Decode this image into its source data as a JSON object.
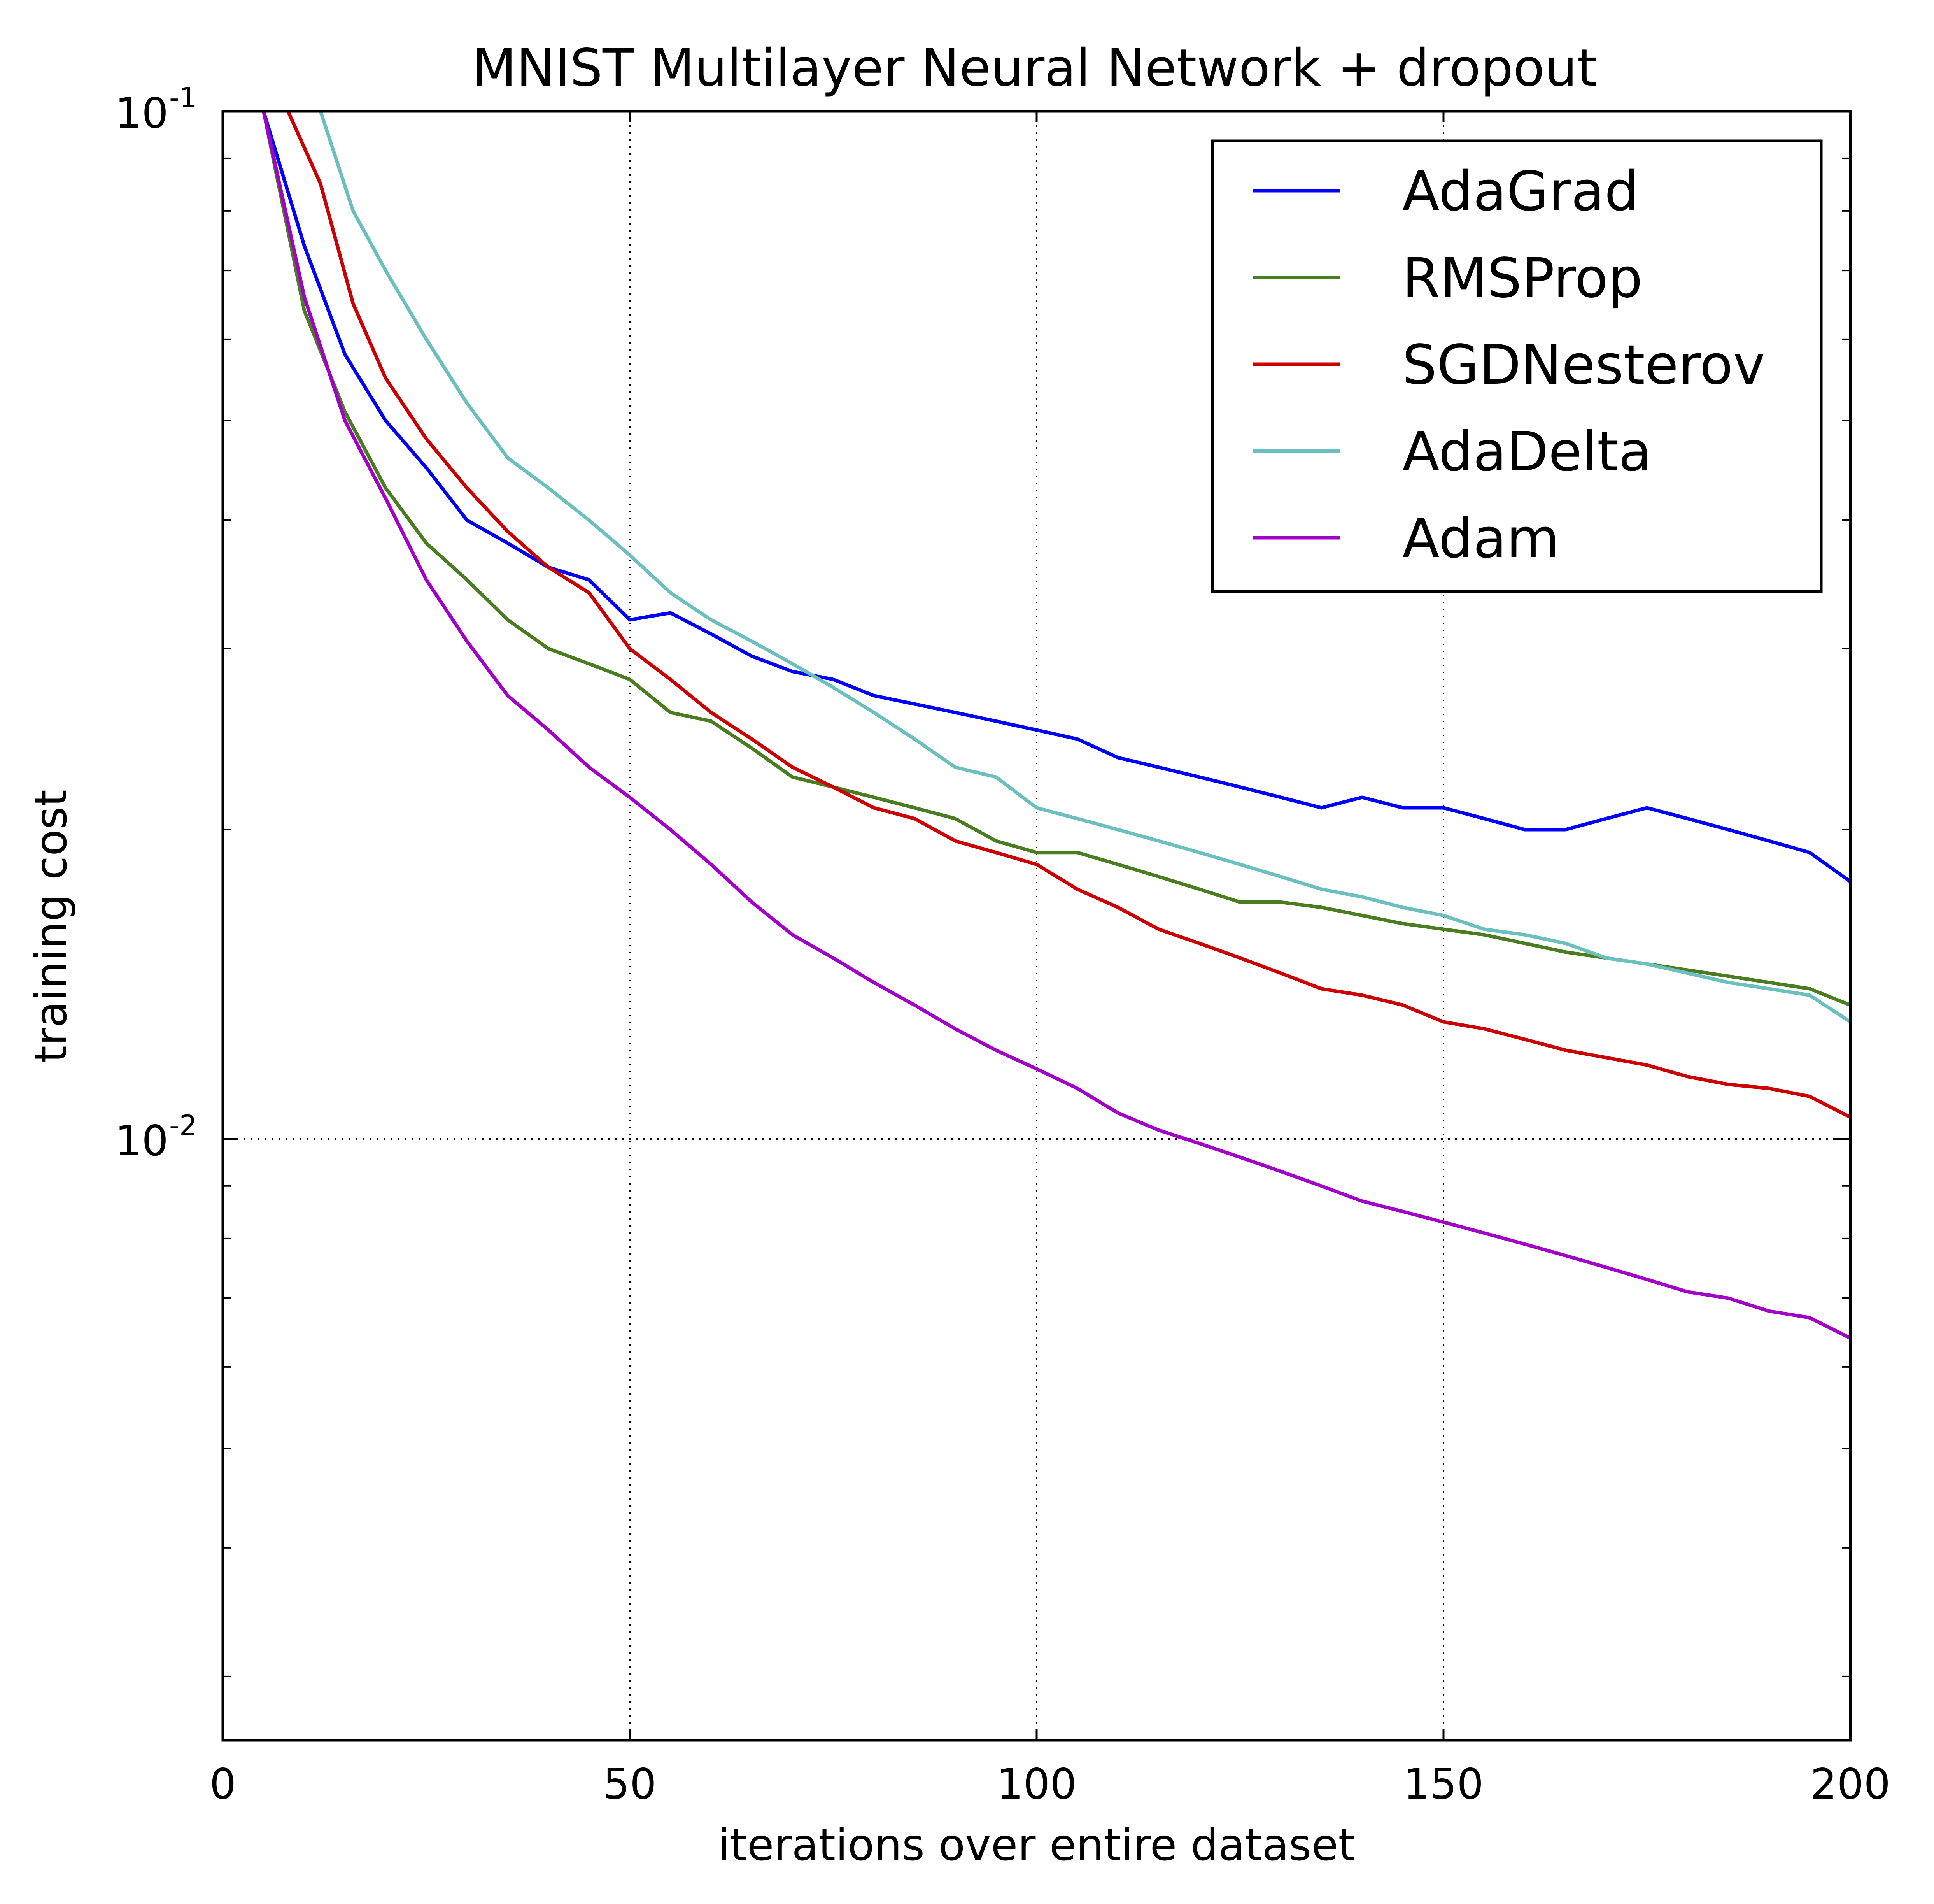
{
  "chart_data": {
    "type": "line",
    "title": "MNIST Multilayer Neural Network + dropout",
    "xlabel": "iterations over entire dataset",
    "ylabel": "training cost",
    "xlim": [
      0,
      200
    ],
    "ylim": [
      0.0026,
      0.1
    ],
    "yscale": "log",
    "grid": true,
    "legend_position": "top-right",
    "x_ticks": [
      "0",
      "50",
      "100",
      "150",
      "200"
    ],
    "y_ticks": [
      {
        "base": "10",
        "exp": "-1"
      },
      {
        "base": "10",
        "exp": "-2"
      }
    ],
    "series": [
      {
        "name": "AdaGrad",
        "color": "#0000ff",
        "x": [
          5,
          10,
          15,
          20,
          25,
          30,
          35,
          40,
          45,
          50,
          55,
          60,
          65,
          70,
          75,
          80,
          85,
          90,
          95,
          100,
          105,
          110,
          115,
          120,
          125,
          130,
          135,
          140,
          145,
          150,
          155,
          160,
          165,
          170,
          175,
          180,
          185,
          190,
          195,
          200
        ],
        "y": [
          0.1,
          0.074,
          0.058,
          0.05,
          0.045,
          0.04,
          0.038,
          0.036,
          0.035,
          0.032,
          0.0325,
          0.031,
          0.0295,
          0.0285,
          0.028,
          0.027,
          0.0265,
          0.026,
          0.0255,
          0.025,
          0.0245,
          0.0235,
          0.023,
          0.0225,
          0.022,
          0.0215,
          0.021,
          0.0215,
          0.021,
          0.021,
          0.0205,
          0.02,
          0.02,
          0.0205,
          0.021,
          0.0205,
          0.02,
          0.0195,
          0.019,
          0.0178
        ]
      },
      {
        "name": "RMSProp",
        "color": "#4a7c20",
        "x": [
          5,
          10,
          15,
          20,
          25,
          30,
          35,
          40,
          45,
          50,
          55,
          60,
          65,
          70,
          75,
          80,
          85,
          90,
          95,
          100,
          105,
          110,
          115,
          120,
          125,
          130,
          135,
          140,
          145,
          150,
          155,
          160,
          165,
          170,
          175,
          180,
          185,
          190,
          195,
          200
        ],
        "y": [
          0.1,
          0.064,
          0.051,
          0.043,
          0.038,
          0.035,
          0.032,
          0.03,
          0.029,
          0.028,
          0.026,
          0.0255,
          0.024,
          0.0225,
          0.022,
          0.0215,
          0.021,
          0.0205,
          0.0195,
          0.019,
          0.019,
          0.0185,
          0.018,
          0.0175,
          0.017,
          0.017,
          0.0168,
          0.0165,
          0.0162,
          0.016,
          0.0158,
          0.0155,
          0.0152,
          0.015,
          0.0148,
          0.0146,
          0.0144,
          0.0142,
          0.014,
          0.0135
        ]
      },
      {
        "name": "SGDNesterov",
        "color": "#cc0000",
        "x": [
          8,
          12,
          16,
          20,
          25,
          30,
          35,
          40,
          45,
          50,
          55,
          60,
          65,
          70,
          75,
          80,
          85,
          90,
          95,
          100,
          105,
          110,
          115,
          120,
          125,
          130,
          135,
          140,
          145,
          150,
          155,
          160,
          165,
          170,
          175,
          180,
          185,
          190,
          195,
          200
        ],
        "y": [
          0.1,
          0.085,
          0.065,
          0.055,
          0.048,
          0.043,
          0.039,
          0.036,
          0.034,
          0.03,
          0.028,
          0.026,
          0.0245,
          0.023,
          0.022,
          0.021,
          0.0205,
          0.0195,
          0.019,
          0.0185,
          0.0175,
          0.0168,
          0.016,
          0.0155,
          0.015,
          0.0145,
          0.014,
          0.0138,
          0.0135,
          0.013,
          0.0128,
          0.0125,
          0.0122,
          0.012,
          0.0118,
          0.0115,
          0.0113,
          0.0112,
          0.011,
          0.0105
        ]
      },
      {
        "name": "AdaDelta",
        "color": "#6bbfbf",
        "x": [
          12,
          16,
          20,
          25,
          30,
          35,
          40,
          45,
          50,
          55,
          60,
          65,
          70,
          75,
          80,
          85,
          90,
          95,
          100,
          105,
          110,
          115,
          120,
          125,
          130,
          135,
          140,
          145,
          150,
          155,
          160,
          165,
          170,
          175,
          180,
          185,
          190,
          195,
          200
        ],
        "y": [
          0.1,
          0.08,
          0.07,
          0.06,
          0.052,
          0.046,
          0.043,
          0.04,
          0.037,
          0.034,
          0.032,
          0.0305,
          0.029,
          0.0275,
          0.026,
          0.0245,
          0.023,
          0.0225,
          0.021,
          0.0205,
          0.02,
          0.0195,
          0.019,
          0.0185,
          0.018,
          0.0175,
          0.0172,
          0.0168,
          0.0165,
          0.016,
          0.0158,
          0.0155,
          0.015,
          0.0148,
          0.0145,
          0.0142,
          0.014,
          0.0138,
          0.013
        ]
      },
      {
        "name": "Adam",
        "color": "#a200c8",
        "x": [
          5,
          10,
          15,
          20,
          25,
          30,
          35,
          40,
          45,
          50,
          55,
          60,
          65,
          70,
          75,
          80,
          85,
          90,
          95,
          100,
          105,
          110,
          115,
          120,
          125,
          130,
          135,
          140,
          145,
          150,
          155,
          160,
          165,
          170,
          175,
          180,
          185,
          190,
          195,
          200
        ],
        "y": [
          0.1,
          0.066,
          0.05,
          0.042,
          0.035,
          0.0305,
          0.027,
          0.025,
          0.023,
          0.0215,
          0.02,
          0.0185,
          0.017,
          0.0158,
          0.015,
          0.0142,
          0.0135,
          0.0128,
          0.0122,
          0.0117,
          0.0112,
          0.0106,
          0.0102,
          0.0099,
          0.0096,
          0.0093,
          0.009,
          0.0087,
          0.0085,
          0.0083,
          0.0081,
          0.0079,
          0.0077,
          0.0075,
          0.0073,
          0.0071,
          0.007,
          0.0068,
          0.0067,
          0.0064
        ]
      }
    ]
  }
}
